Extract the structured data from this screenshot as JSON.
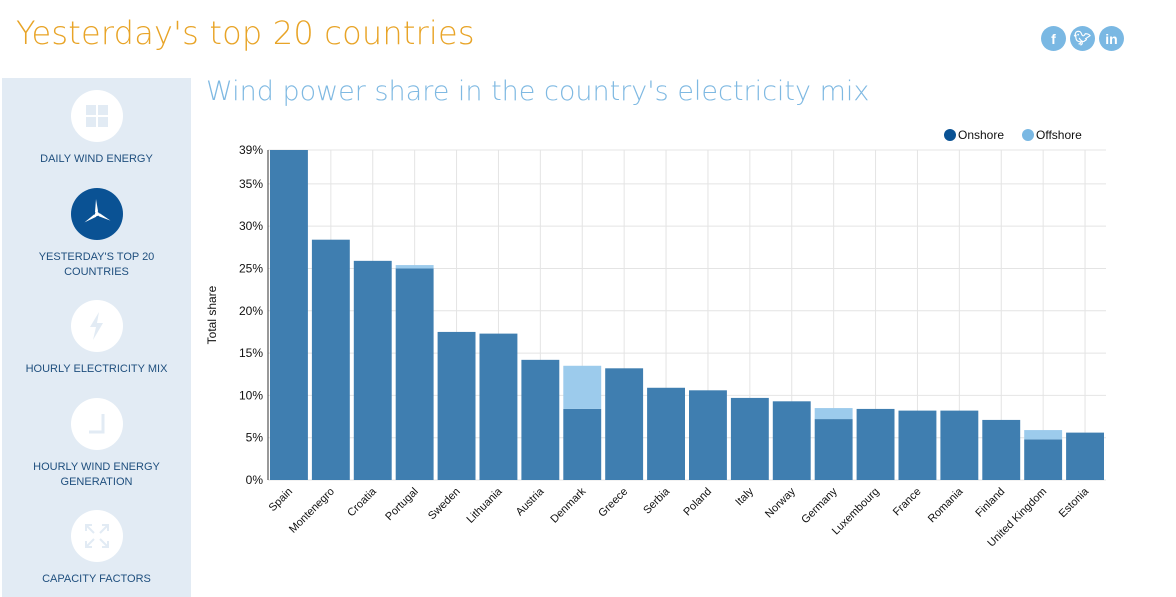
{
  "header": {
    "title": "Yesterday's top 20 countries",
    "social": [
      {
        "icon": "facebook-icon",
        "label": "f"
      },
      {
        "icon": "twitter-icon",
        "label": "t"
      },
      {
        "icon": "linkedin-icon",
        "label": "in"
      }
    ]
  },
  "sidebar": {
    "items": [
      {
        "label": "DAILY WIND ENERGY",
        "icon": "grid-icon",
        "active": false
      },
      {
        "label": "YESTERDAY'S TOP 20 COUNTRIES",
        "icon": "wind-turbine-icon",
        "active": true
      },
      {
        "label": "HOURLY ELECTRICITY MIX",
        "icon": "lightning-icon",
        "active": false
      },
      {
        "label": "HOURLY WIND ENERGY GENERATION",
        "icon": "clock-icon",
        "active": false
      },
      {
        "label": "CAPACITY FACTORS",
        "icon": "expand-arrows-icon",
        "active": false
      }
    ]
  },
  "chart_data": {
    "type": "bar",
    "stacked": true,
    "title": "Wind power share in the country's electricity mix",
    "ylabel": "Total share",
    "ylim": [
      0,
      39
    ],
    "yticks": [
      "0%",
      "5%",
      "10%",
      "15%",
      "20%",
      "25%",
      "30%",
      "35%",
      "39%"
    ],
    "grid": true,
    "legend": "top-right",
    "colors": {
      "Onshore": "#3f7eb0",
      "Offshore": "#9ccbec",
      "legend_onshore": "#0a5294",
      "legend_offshore": "#7ab8e3"
    },
    "categories": [
      "Spain",
      "Montenegro",
      "Croatia",
      "Portugal",
      "Sweden",
      "Lithuania",
      "Austria",
      "Denmark",
      "Greece",
      "Serbia",
      "Poland",
      "Italy",
      "Norway",
      "Germany",
      "Luxembourg",
      "France",
      "Romania",
      "Finland",
      "United Kingdom",
      "Estonia"
    ],
    "series": [
      {
        "name": "Onshore",
        "values": [
          39,
          28.4,
          25.9,
          25.0,
          17.5,
          17.3,
          14.2,
          8.4,
          13.2,
          10.9,
          10.6,
          9.7,
          9.3,
          7.2,
          8.4,
          8.2,
          8.2,
          7.1,
          4.8,
          5.6
        ]
      },
      {
        "name": "Offshore",
        "values": [
          0,
          0,
          0,
          0.4,
          0,
          0,
          0,
          5.1,
          0,
          0,
          0,
          0,
          0,
          1.3,
          0,
          0,
          0,
          0,
          1.1,
          0
        ]
      }
    ]
  }
}
